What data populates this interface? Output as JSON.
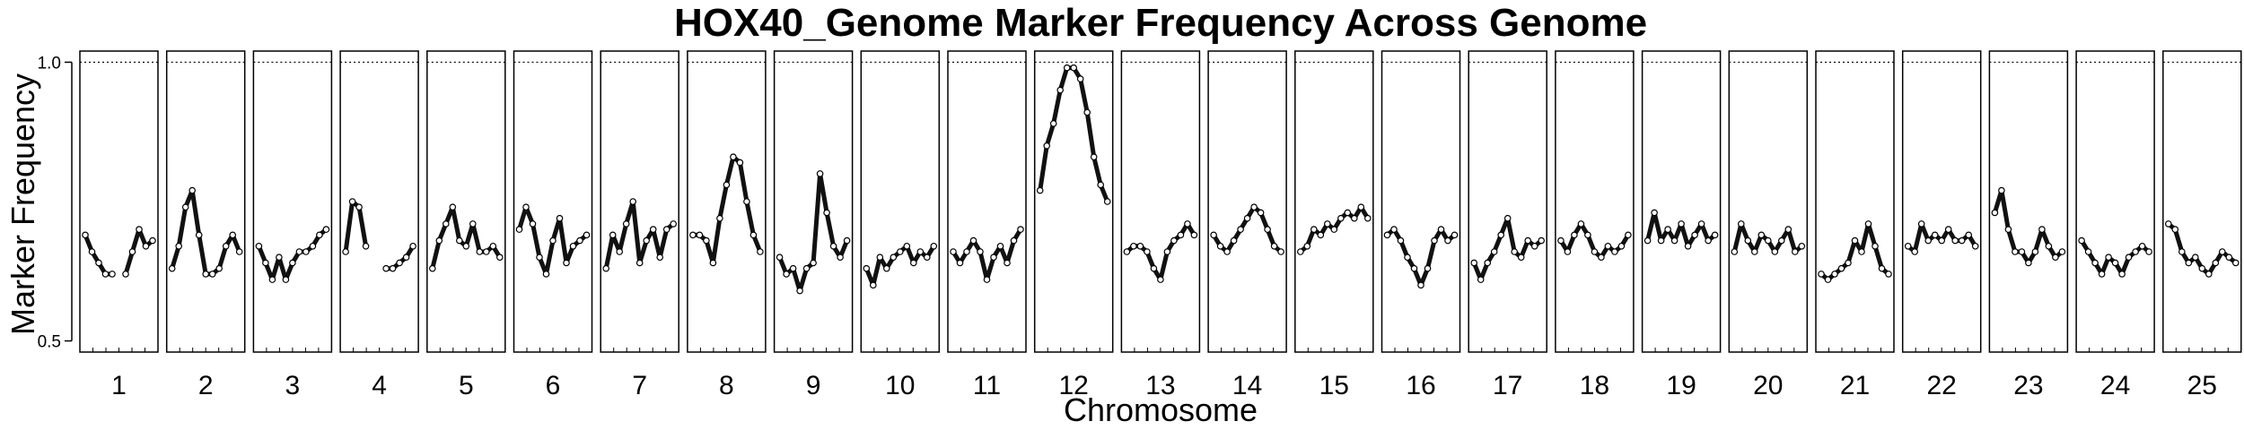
{
  "chart_data": {
    "type": "scatter",
    "title": "HOX40_Genome Marker Frequency Across Genome",
    "xlabel": "Chromosome",
    "ylabel": "Marker Frequency",
    "ylim": [
      0.48,
      1.02
    ],
    "yticks": [
      0.5,
      1.0
    ],
    "ytick_labels": [
      "0.5",
      "1.0"
    ],
    "reference_line": {
      "y": 1.0,
      "style": "dotted"
    },
    "grid": false,
    "panel_labels": [
      "1",
      "2",
      "3",
      "4",
      "5",
      "6",
      "7",
      "8",
      "9",
      "10",
      "11",
      "12",
      "13",
      "14",
      "15",
      "16",
      "17",
      "18",
      "19",
      "20",
      "21",
      "22",
      "23",
      "24",
      "25"
    ],
    "panels": [
      {
        "chromosome": "1",
        "x": [
          0,
          0.1,
          0.2,
          0.3,
          0.4,
          0.5,
          0.6,
          0.7,
          0.8,
          0.9,
          1
        ],
        "y": [
          0.69,
          0.66,
          0.64,
          0.62,
          0.62,
          null,
          0.62,
          0.66,
          0.7,
          0.67,
          0.68
        ]
      },
      {
        "chromosome": "2",
        "x": [
          0,
          0.1,
          0.2,
          0.3,
          0.4,
          0.5,
          0.6,
          0.7,
          0.8,
          0.9,
          1
        ],
        "y": [
          0.63,
          0.67,
          0.74,
          0.77,
          0.69,
          0.62,
          0.62,
          0.63,
          0.67,
          0.69,
          0.66
        ]
      },
      {
        "chromosome": "3",
        "x": [
          0,
          0.1,
          0.2,
          0.3,
          0.4,
          0.5,
          0.6,
          0.7,
          0.8,
          0.9,
          1
        ],
        "y": [
          0.67,
          0.64,
          0.61,
          0.65,
          0.61,
          0.64,
          0.66,
          0.66,
          0.67,
          0.69,
          0.7
        ]
      },
      {
        "chromosome": "4",
        "x": [
          0,
          0.1,
          0.2,
          0.3,
          0.4,
          0.5,
          0.6,
          0.7,
          0.8,
          0.9,
          1
        ],
        "y": [
          0.66,
          0.75,
          0.74,
          0.67,
          null,
          null,
          0.63,
          0.63,
          0.64,
          0.65,
          0.67
        ]
      },
      {
        "chromosome": "5",
        "x": [
          0,
          0.1,
          0.2,
          0.3,
          0.4,
          0.5,
          0.6,
          0.7,
          0.8,
          0.9,
          1
        ],
        "y": [
          0.63,
          0.68,
          0.71,
          0.74,
          0.68,
          0.67,
          0.71,
          0.66,
          0.66,
          0.67,
          0.65
        ]
      },
      {
        "chromosome": "6",
        "x": [
          0,
          0.1,
          0.2,
          0.3,
          0.4,
          0.5,
          0.6,
          0.7,
          0.8,
          0.9,
          1
        ],
        "y": [
          0.7,
          0.74,
          0.71,
          0.65,
          0.62,
          0.68,
          0.72,
          0.64,
          0.67,
          0.68,
          0.69
        ]
      },
      {
        "chromosome": "7",
        "x": [
          0,
          0.1,
          0.2,
          0.3,
          0.4,
          0.5,
          0.6,
          0.7,
          0.8,
          0.9,
          1
        ],
        "y": [
          0.63,
          0.69,
          0.66,
          0.71,
          0.75,
          0.64,
          0.68,
          0.7,
          0.65,
          0.7,
          0.71
        ]
      },
      {
        "chromosome": "8",
        "x": [
          0,
          0.1,
          0.2,
          0.3,
          0.4,
          0.5,
          0.6,
          0.7,
          0.8,
          0.9,
          1
        ],
        "y": [
          0.69,
          0.69,
          0.68,
          0.64,
          0.72,
          0.78,
          0.83,
          0.82,
          0.75,
          0.69,
          0.66
        ]
      },
      {
        "chromosome": "9",
        "x": [
          0,
          0.1,
          0.2,
          0.3,
          0.4,
          0.5,
          0.6,
          0.7,
          0.8,
          0.9,
          1
        ],
        "y": [
          0.65,
          0.62,
          0.63,
          0.59,
          0.63,
          0.64,
          0.8,
          0.73,
          0.67,
          0.65,
          0.68
        ]
      },
      {
        "chromosome": "10",
        "x": [
          0,
          0.1,
          0.2,
          0.3,
          0.4,
          0.5,
          0.6,
          0.7,
          0.8,
          0.9,
          1
        ],
        "y": [
          0.63,
          0.6,
          0.65,
          0.63,
          0.65,
          0.66,
          0.67,
          0.64,
          0.66,
          0.65,
          0.67
        ]
      },
      {
        "chromosome": "11",
        "x": [
          0,
          0.1,
          0.2,
          0.3,
          0.4,
          0.5,
          0.6,
          0.7,
          0.8,
          0.9,
          1
        ],
        "y": [
          0.66,
          0.64,
          0.66,
          0.68,
          0.66,
          0.61,
          0.65,
          0.67,
          0.64,
          0.68,
          0.7
        ]
      },
      {
        "chromosome": "12",
        "x": [
          0,
          0.1,
          0.2,
          0.3,
          0.4,
          0.5,
          0.6,
          0.7,
          0.8,
          0.9,
          1
        ],
        "y": [
          0.77,
          0.85,
          0.89,
          0.95,
          0.99,
          0.99,
          0.97,
          0.91,
          0.83,
          0.78,
          0.75
        ]
      },
      {
        "chromosome": "13",
        "x": [
          0,
          0.1,
          0.2,
          0.3,
          0.4,
          0.5,
          0.6,
          0.7,
          0.8,
          0.9,
          1
        ],
        "y": [
          0.66,
          0.67,
          0.67,
          0.66,
          0.63,
          0.61,
          0.66,
          0.68,
          0.69,
          0.71,
          0.69
        ]
      },
      {
        "chromosome": "14",
        "x": [
          0,
          0.1,
          0.2,
          0.3,
          0.4,
          0.5,
          0.6,
          0.7,
          0.8,
          0.9,
          1
        ],
        "y": [
          0.69,
          0.67,
          0.66,
          0.68,
          0.7,
          0.72,
          0.74,
          0.73,
          0.7,
          0.67,
          0.66
        ]
      },
      {
        "chromosome": "15",
        "x": [
          0,
          0.1,
          0.2,
          0.3,
          0.4,
          0.5,
          0.6,
          0.7,
          0.8,
          0.9,
          1
        ],
        "y": [
          0.66,
          0.67,
          0.7,
          0.69,
          0.71,
          0.7,
          0.72,
          0.73,
          0.72,
          0.74,
          0.72
        ]
      },
      {
        "chromosome": "16",
        "x": [
          0,
          0.1,
          0.2,
          0.3,
          0.4,
          0.5,
          0.6,
          0.7,
          0.8,
          0.9,
          1
        ],
        "y": [
          0.69,
          0.7,
          0.68,
          0.65,
          0.63,
          0.6,
          0.63,
          0.68,
          0.7,
          0.68,
          0.69
        ]
      },
      {
        "chromosome": "17",
        "x": [
          0,
          0.1,
          0.2,
          0.3,
          0.4,
          0.5,
          0.6,
          0.7,
          0.8,
          0.9,
          1
        ],
        "y": [
          0.64,
          0.61,
          0.64,
          0.66,
          0.69,
          0.72,
          0.66,
          0.65,
          0.68,
          0.67,
          0.68
        ]
      },
      {
        "chromosome": "18",
        "x": [
          0,
          0.1,
          0.2,
          0.3,
          0.4,
          0.5,
          0.6,
          0.7,
          0.8,
          0.9,
          1
        ],
        "y": [
          0.68,
          0.66,
          0.69,
          0.71,
          0.69,
          0.66,
          0.65,
          0.67,
          0.66,
          0.67,
          0.69
        ]
      },
      {
        "chromosome": "19",
        "x": [
          0,
          0.1,
          0.2,
          0.3,
          0.4,
          0.5,
          0.6,
          0.7,
          0.8,
          0.9,
          1
        ],
        "y": [
          0.68,
          0.73,
          0.68,
          0.7,
          0.68,
          0.71,
          0.67,
          0.69,
          0.71,
          0.68,
          0.69
        ]
      },
      {
        "chromosome": "20",
        "x": [
          0,
          0.1,
          0.2,
          0.3,
          0.4,
          0.5,
          0.6,
          0.7,
          0.8,
          0.9,
          1
        ],
        "y": [
          0.66,
          0.71,
          0.68,
          0.66,
          0.69,
          0.68,
          0.66,
          0.68,
          0.7,
          0.66,
          0.67
        ]
      },
      {
        "chromosome": "21",
        "x": [
          0,
          0.1,
          0.2,
          0.3,
          0.4,
          0.5,
          0.6,
          0.7,
          0.8,
          0.9,
          1
        ],
        "y": [
          0.62,
          0.61,
          0.62,
          0.63,
          0.64,
          0.68,
          0.66,
          0.71,
          0.67,
          0.63,
          0.62
        ]
      },
      {
        "chromosome": "22",
        "x": [
          0,
          0.1,
          0.2,
          0.3,
          0.4,
          0.5,
          0.6,
          0.7,
          0.8,
          0.9,
          1
        ],
        "y": [
          0.67,
          0.66,
          0.71,
          0.68,
          0.69,
          0.68,
          0.7,
          0.68,
          0.68,
          0.69,
          0.67
        ]
      },
      {
        "chromosome": "23",
        "x": [
          0,
          0.1,
          0.2,
          0.3,
          0.4,
          0.5,
          0.6,
          0.7,
          0.8,
          0.9,
          1
        ],
        "y": [
          0.73,
          0.77,
          0.7,
          0.66,
          0.66,
          0.64,
          0.66,
          0.7,
          0.67,
          0.65,
          0.66
        ]
      },
      {
        "chromosome": "24",
        "x": [
          0,
          0.1,
          0.2,
          0.3,
          0.4,
          0.5,
          0.6,
          0.7,
          0.8,
          0.9,
          1
        ],
        "y": [
          0.68,
          0.66,
          0.64,
          0.62,
          0.65,
          0.64,
          0.62,
          0.65,
          0.66,
          0.67,
          0.66
        ]
      },
      {
        "chromosome": "25",
        "x": [
          0,
          0.1,
          0.2,
          0.3,
          0.4,
          0.5,
          0.6,
          0.7,
          0.8,
          0.9,
          1
        ],
        "y": [
          0.71,
          0.7,
          0.66,
          0.64,
          0.65,
          0.63,
          0.62,
          0.64,
          0.66,
          0.65,
          0.64
        ]
      }
    ]
  }
}
